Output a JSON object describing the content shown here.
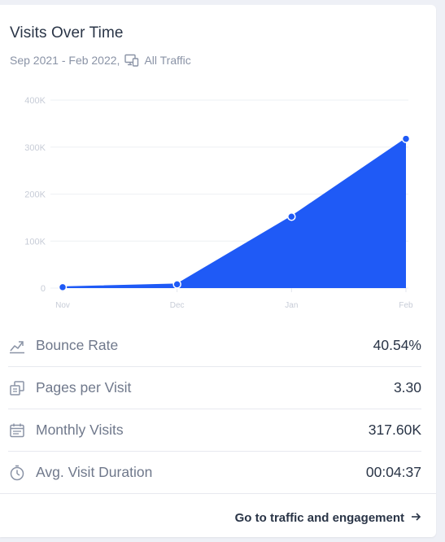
{
  "card": {
    "title": "Visits Over Time",
    "date_range": "Sep 2021 - Feb 2022,",
    "traffic_filter": "All Traffic"
  },
  "chart_data": {
    "type": "area",
    "categories": [
      "Nov",
      "Dec",
      "Jan",
      "Feb"
    ],
    "values": [
      2000,
      8000,
      152000,
      317600
    ],
    "y_ticks": [
      "400K",
      "300K",
      "200K",
      "100K",
      "0"
    ],
    "ylim": [
      0,
      400000
    ],
    "grid": true,
    "color": "#1f5af6"
  },
  "metrics": [
    {
      "icon": "bounce-rate-icon",
      "label": "Bounce Rate",
      "value": "40.54%"
    },
    {
      "icon": "pages-per-visit-icon",
      "label": "Pages per Visit",
      "value": "3.30"
    },
    {
      "icon": "calendar-icon",
      "label": "Monthly Visits",
      "value": "317.60K"
    },
    {
      "icon": "stopwatch-icon",
      "label": "Avg. Visit Duration",
      "value": "00:04:37"
    }
  ],
  "footer": {
    "link_label": "Go to traffic and engagement"
  }
}
